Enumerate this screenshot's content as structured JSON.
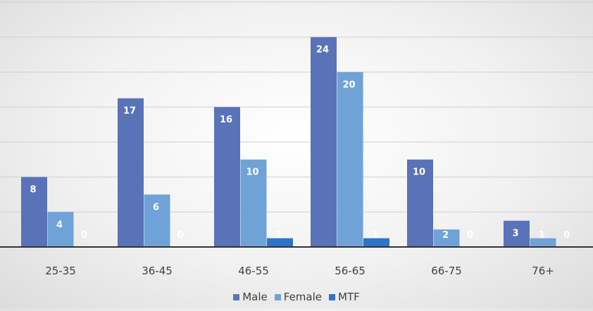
{
  "chart_data": {
    "type": "bar",
    "title": "",
    "xlabel": "",
    "ylabel": "",
    "categories": [
      "25-35",
      "36-45",
      "46-55",
      "56-65",
      "66-75",
      "76+"
    ],
    "series": [
      {
        "name": "Male",
        "color": "#5a72b8",
        "values": [
          8,
          17,
          16,
          24,
          10,
          3
        ]
      },
      {
        "name": "Female",
        "color": "#6fa3d8",
        "values": [
          4,
          6,
          10,
          20,
          2,
          1
        ]
      },
      {
        "name": "MTF",
        "color": "#2e74c9",
        "values": [
          0,
          0,
          1,
          1,
          0,
          0
        ]
      }
    ],
    "ylim": [
      0,
      28
    ],
    "gridlines": true,
    "legend_position": "bottom",
    "data_labels": true
  }
}
